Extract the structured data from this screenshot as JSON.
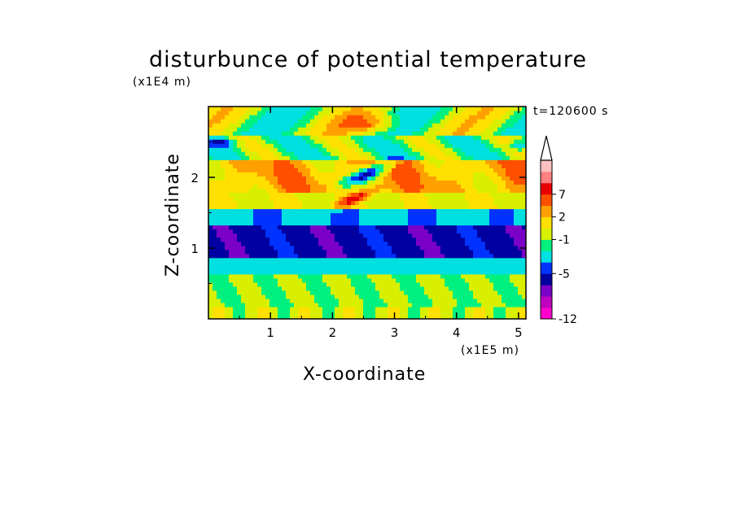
{
  "chart_data": {
    "type": "heatmap",
    "title": "disturbunce of potential temperature",
    "xlabel": "X-coordinate",
    "ylabel": "Z-coordinate",
    "x_unit": "(x1E5 m)",
    "y_unit": "(x1E4 m)",
    "time_label": "t=120600 s",
    "xlim": [
      0,
      5.12
    ],
    "ylim": [
      0,
      3.0
    ],
    "x_ticks": [
      "1",
      "2",
      "3",
      "4",
      "5"
    ],
    "y_ticks": [
      "1",
      "2"
    ],
    "colorbar": {
      "tick_labels": [
        "7",
        "2",
        "-1",
        "-5",
        "-12"
      ],
      "extend": "max",
      "colors": [
        "#ff00cc",
        "#c000c0",
        "#7a00c8",
        "#0000a0",
        "#0033ff",
        "#00e0e0",
        "#00f080",
        "#d8f000",
        "#ffe000",
        "#ffa000",
        "#ff5000",
        "#e80000",
        "#ff8080",
        "#ffc0c0"
      ]
    }
  }
}
